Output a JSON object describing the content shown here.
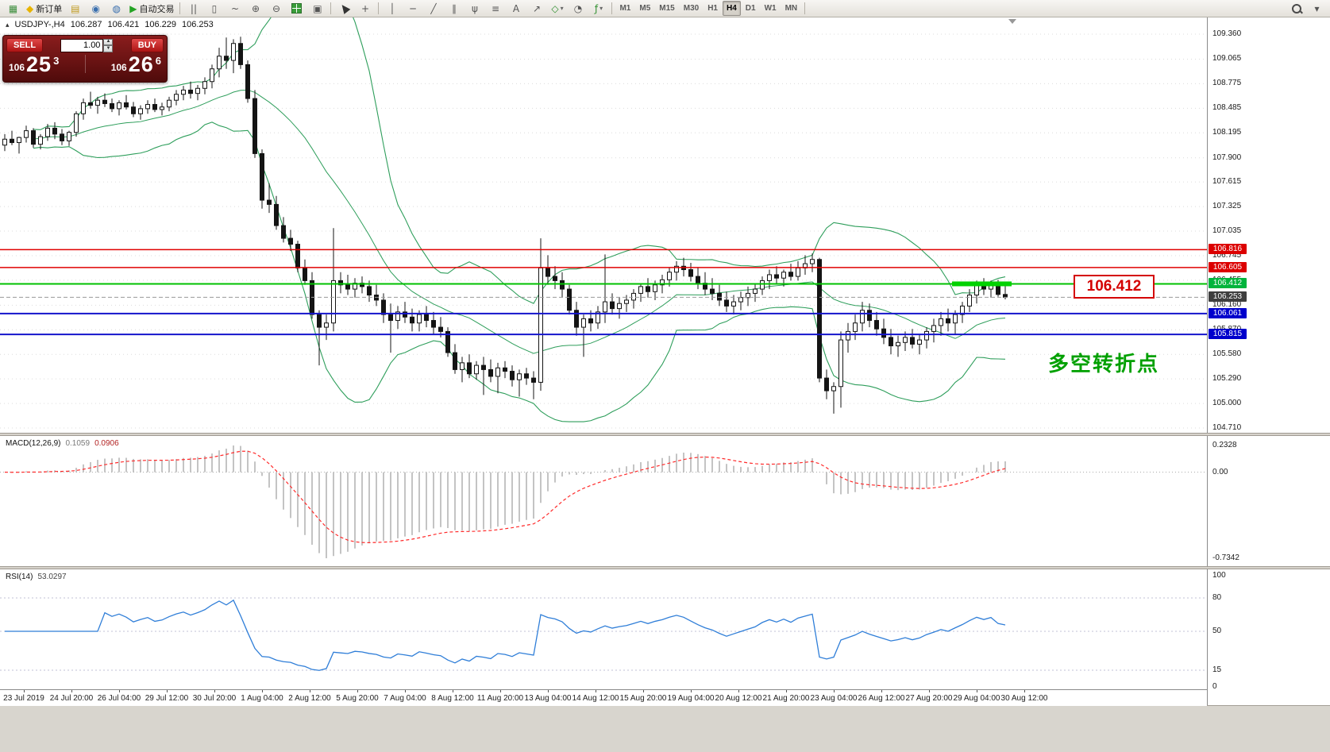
{
  "toolbar": {
    "items": [
      {
        "name": "terminal-chart-icon",
        "glyph": "▦",
        "color": "#3f8f3f"
      },
      {
        "name": "new-order-button",
        "glyph": "◆",
        "color": "#e8b400",
        "label": "新订单"
      },
      {
        "name": "quotes-icon",
        "glyph": "▤",
        "color": "#c09a20"
      },
      {
        "name": "profile-icon",
        "glyph": "◉",
        "color": "#3a6fae"
      },
      {
        "name": "community-icon",
        "glyph": "◍",
        "color": "#3a6fae"
      },
      {
        "name": "autotrading-button",
        "glyph": "▶",
        "color": "#23a323",
        "label": "自动交易"
      },
      {
        "sep": true
      },
      {
        "name": "bars-mode-icon",
        "glyph": "||",
        "color": "#555555"
      },
      {
        "name": "candles-mode-icon",
        "glyph": "▯",
        "color": "#555555"
      },
      {
        "name": "line-mode-icon",
        "glyph": "~",
        "color": "#555555"
      },
      {
        "name": "zoom-in-icon",
        "glyph": "⊕",
        "color": "#555555"
      },
      {
        "name": "zoom-out-icon",
        "glyph": "⊖",
        "color": "#555555"
      },
      {
        "name": "tile-windows-icon",
        "css": "tile"
      },
      {
        "name": "arrange-windows-icon",
        "glyph": "▣",
        "color": "#555555"
      },
      {
        "sep": true
      },
      {
        "name": "cursor-icon",
        "css": "cursor"
      },
      {
        "name": "crosshair-icon",
        "glyph": "+",
        "color": "#555555"
      },
      {
        "sep": true
      },
      {
        "name": "vertical-line-icon",
        "glyph": "│",
        "color": "#555555"
      },
      {
        "name": "horizontal-line-icon",
        "glyph": "─",
        "color": "#555555"
      },
      {
        "name": "trendline-icon",
        "glyph": "╱",
        "color": "#555555"
      },
      {
        "name": "channel-icon",
        "glyph": "∥",
        "color": "#555555"
      },
      {
        "name": "pitchfork-icon",
        "glyph": "ψ",
        "color": "#555555"
      },
      {
        "name": "fibonacci-icon",
        "glyph": "≡",
        "color": "#555555"
      },
      {
        "name": "text-label-icon",
        "glyph": "A",
        "color": "#555555"
      },
      {
        "name": "arrow-objects-icon",
        "glyph": "↗",
        "color": "#555555"
      },
      {
        "name": "shapes-icon",
        "glyph": "◇",
        "color": "#2f8f2f",
        "dropdown": true
      },
      {
        "name": "cycles-icon",
        "glyph": "◔",
        "color": "#555555"
      },
      {
        "name": "indicators-icon",
        "glyph": "ƒ",
        "color": "#2f8f2f",
        "dropdown": true
      },
      {
        "sep": true
      },
      {
        "timeframes": true
      },
      {
        "sep": true
      }
    ],
    "items_right": [
      {
        "name": "search-icon",
        "css": "magnifier"
      },
      {
        "name": "toolbar-options-icon",
        "glyph": "▾",
        "color": "#555555"
      }
    ],
    "timeframes": {
      "options": [
        "M1",
        "M5",
        "M15",
        "M30",
        "H1",
        "H4",
        "D1",
        "W1",
        "MN"
      ],
      "active": "H4"
    }
  },
  "ohlc": {
    "symbol_period": "USDJPY-,H4",
    "open": "106.287",
    "high": "106.421",
    "low": "106.229",
    "close": "106.253"
  },
  "trade_panel": {
    "sell_label": "SELL",
    "buy_label": "BUY",
    "volume": "1.00",
    "sell_small": "106",
    "sell_big": "25",
    "sell_sup": "3",
    "buy_small": "106",
    "buy_big": "26",
    "buy_sup": "6"
  },
  "price_axis": {
    "scale": [
      "109.360",
      "109.065",
      "108.775",
      "108.485",
      "108.195",
      "107.900",
      "107.615",
      "107.325",
      "107.035",
      "106.745",
      "106.455",
      "106.160",
      "105.870",
      "105.580",
      "105.290",
      "105.000",
      "104.710"
    ],
    "tags": [
      {
        "text": "106.816",
        "bg": "#dc0000"
      },
      {
        "text": "106.605",
        "bg": "#dc0000"
      },
      {
        "text": "106.412",
        "bg": "#00b43c"
      },
      {
        "text": "106.253",
        "bg": "#3e3e3e"
      },
      {
        "text": "106.061",
        "bg": "#0000cc"
      },
      {
        "text": "105.815",
        "bg": "#0000cc"
      }
    ]
  },
  "levels": {
    "lines": [
      {
        "name": "resistance-line-1",
        "price": 106.816,
        "color": "#e00000",
        "width": 1.6
      },
      {
        "name": "resistance-line-2",
        "price": 106.605,
        "color": "#e00000",
        "width": 1.6
      },
      {
        "name": "pivot-line",
        "price": 106.412,
        "color": "#00c000",
        "width": 2
      },
      {
        "name": "support-line-1",
        "price": 106.061,
        "color": "#1414cc",
        "width": 2
      },
      {
        "name": "support-line-2",
        "price": 105.815,
        "color": "#1414cc",
        "width": 2
      }
    ],
    "bid": {
      "price": 106.253,
      "color": "#9a9a9a"
    },
    "zone": {
      "price": 106.412,
      "from": 133,
      "to": 140,
      "color": "#00d200"
    }
  },
  "annotations": {
    "price_callout": "106.412",
    "note_text": "多空转折点"
  },
  "macd": {
    "title": "MACD(12,26,9)",
    "value_main": "0.1059",
    "value_signal": "0.0906",
    "axis_max": "0.2328",
    "axis_zero": "0.00",
    "axis_min": "-0.7342"
  },
  "rsi": {
    "title": "RSI(14)",
    "value": "53.0297",
    "axis": [
      "100",
      "80",
      "50",
      "15",
      "0"
    ],
    "levels": [
      80,
      50,
      15
    ]
  },
  "time_axis": {
    "labels": [
      "23 Jul 2019",
      "24 Jul 20:00",
      "26 Jul 04:00",
      "29 Jul 12:00",
      "30 Jul 20:00",
      "1 Aug 04:00",
      "2 Aug 12:00",
      "5 Aug 20:00",
      "7 Aug 04:00",
      "8 Aug 12:00",
      "11 Aug 20:00",
      "13 Aug 04:00",
      "14 Aug 12:00",
      "15 Aug 20:00",
      "19 Aug 04:00",
      "20 Aug 12:00",
      "21 Aug 20:00",
      "23 Aug 04:00",
      "26 Aug 12:00",
      "27 Aug 20:00",
      "29 Aug 04:00",
      "30 Aug 12:00"
    ]
  },
  "colors": {
    "bollinger": "#2e9e5b",
    "candle_up": "#ffffff",
    "candle_down": "#141414",
    "candle_border": "#141414",
    "grid": "#dcdcdc",
    "macd_histogram": "#b0b0b0",
    "macd_signal": "#ff2a2a",
    "rsi_line": "#2f7ed8",
    "note_green": "#00a000"
  },
  "chart_data": {
    "type": "candlestick",
    "symbol": "USDJPY-",
    "period": "H4",
    "ylim": [
      104.65,
      109.56
    ],
    "indicators": [
      {
        "type": "bollinger_bands",
        "period": 20,
        "deviation": 2
      },
      {
        "type": "macd",
        "fast": 12,
        "slow": 26,
        "signal": 9
      },
      {
        "type": "rsi",
        "period": 14
      }
    ],
    "ohlc": [
      [
        108.05,
        108.18,
        107.98,
        108.12
      ],
      [
        108.12,
        108.22,
        108.05,
        108.08
      ],
      [
        108.08,
        108.15,
        107.95,
        108.14
      ],
      [
        108.14,
        108.28,
        108.08,
        108.22
      ],
      [
        108.22,
        108.25,
        108.02,
        108.06
      ],
      [
        108.06,
        108.18,
        108.0,
        108.15
      ],
      [
        108.15,
        108.3,
        108.1,
        108.25
      ],
      [
        108.25,
        108.32,
        108.12,
        108.18
      ],
      [
        108.18,
        108.24,
        108.05,
        108.1
      ],
      [
        108.1,
        108.22,
        108.04,
        108.2
      ],
      [
        108.2,
        108.45,
        108.15,
        108.42
      ],
      [
        108.42,
        108.6,
        108.35,
        108.55
      ],
      [
        108.55,
        108.68,
        108.48,
        108.52
      ],
      [
        108.52,
        108.62,
        108.42,
        108.58
      ],
      [
        108.58,
        108.66,
        108.5,
        108.54
      ],
      [
        108.54,
        108.6,
        108.44,
        108.48
      ],
      [
        108.48,
        108.58,
        108.4,
        108.55
      ],
      [
        108.55,
        108.64,
        108.47,
        108.5
      ],
      [
        108.5,
        108.56,
        108.38,
        108.42
      ],
      [
        108.42,
        108.52,
        108.35,
        108.48
      ],
      [
        108.48,
        108.58,
        108.42,
        108.53
      ],
      [
        108.53,
        108.6,
        108.44,
        108.47
      ],
      [
        108.47,
        108.55,
        108.4,
        108.5
      ],
      [
        108.5,
        108.62,
        108.45,
        108.58
      ],
      [
        108.58,
        108.7,
        108.52,
        108.65
      ],
      [
        108.65,
        108.75,
        108.58,
        108.7
      ],
      [
        108.7,
        108.8,
        108.6,
        108.66
      ],
      [
        108.66,
        108.76,
        108.58,
        108.72
      ],
      [
        108.72,
        108.85,
        108.65,
        108.8
      ],
      [
        108.8,
        109.0,
        108.72,
        108.95
      ],
      [
        108.95,
        109.2,
        108.85,
        109.1
      ],
      [
        109.1,
        109.32,
        108.95,
        109.05
      ],
      [
        109.05,
        109.3,
        108.9,
        109.25
      ],
      [
        109.25,
        109.33,
        108.95,
        109.0
      ],
      [
        109.0,
        109.05,
        108.55,
        108.6
      ],
      [
        108.6,
        108.7,
        107.9,
        107.95
      ],
      [
        107.95,
        108.0,
        107.3,
        107.4
      ],
      [
        107.4,
        107.6,
        107.25,
        107.35
      ],
      [
        107.35,
        107.45,
        107.05,
        107.1
      ],
      [
        107.1,
        107.2,
        106.9,
        106.95
      ],
      [
        106.95,
        107.05,
        106.8,
        106.88
      ],
      [
        106.88,
        106.92,
        106.55,
        106.6
      ],
      [
        106.6,
        106.7,
        106.4,
        106.45
      ],
      [
        106.45,
        106.55,
        106.0,
        106.05
      ],
      [
        106.05,
        106.1,
        105.45,
        105.9
      ],
      [
        105.9,
        106.05,
        105.75,
        105.95
      ],
      [
        105.95,
        107.07,
        105.85,
        106.45
      ],
      [
        106.45,
        106.55,
        106.3,
        106.4
      ],
      [
        106.4,
        106.52,
        106.28,
        106.35
      ],
      [
        106.35,
        106.48,
        106.25,
        106.42
      ],
      [
        106.42,
        106.5,
        106.3,
        106.38
      ],
      [
        106.38,
        106.45,
        106.2,
        106.28
      ],
      [
        106.28,
        106.4,
        106.15,
        106.22
      ],
      [
        106.22,
        106.3,
        105.95,
        106.05
      ],
      [
        106.05,
        106.18,
        105.6,
        105.98
      ],
      [
        105.98,
        106.15,
        105.88,
        106.08
      ],
      [
        106.08,
        106.2,
        105.95,
        106.02
      ],
      [
        106.02,
        106.12,
        105.85,
        105.95
      ],
      [
        105.95,
        106.1,
        105.85,
        106.05
      ],
      [
        106.05,
        106.15,
        105.9,
        105.98
      ],
      [
        105.98,
        106.08,
        105.82,
        105.9
      ],
      [
        105.9,
        106.02,
        105.78,
        105.85
      ],
      [
        105.85,
        105.9,
        105.55,
        105.6
      ],
      [
        105.6,
        105.7,
        105.35,
        105.4
      ],
      [
        105.4,
        105.55,
        105.25,
        105.48
      ],
      [
        105.48,
        105.58,
        105.3,
        105.35
      ],
      [
        105.35,
        105.5,
        105.28,
        105.45
      ],
      [
        105.45,
        105.55,
        105.1,
        105.4
      ],
      [
        105.4,
        105.52,
        105.25,
        105.32
      ],
      [
        105.32,
        105.48,
        105.12,
        105.42
      ],
      [
        105.42,
        105.5,
        105.3,
        105.38
      ],
      [
        105.38,
        105.45,
        105.2,
        105.28
      ],
      [
        105.28,
        105.4,
        105.08,
        105.35
      ],
      [
        105.35,
        105.42,
        105.22,
        105.3
      ],
      [
        105.3,
        105.38,
        105.05,
        105.25
      ],
      [
        105.25,
        106.95,
        105.15,
        106.6
      ],
      [
        106.6,
        106.75,
        106.4,
        106.5
      ],
      [
        106.5,
        106.62,
        106.35,
        106.45
      ],
      [
        106.45,
        106.55,
        106.25,
        106.35
      ],
      [
        106.35,
        106.4,
        106.05,
        106.1
      ],
      [
        106.1,
        106.2,
        105.8,
        105.9
      ],
      [
        105.9,
        106.05,
        105.55,
        106.0
      ],
      [
        106.0,
        106.1,
        105.85,
        105.95
      ],
      [
        105.95,
        106.15,
        105.88,
        106.08
      ],
      [
        106.08,
        106.76,
        105.95,
        106.2
      ],
      [
        106.2,
        106.3,
        106.05,
        106.12
      ],
      [
        106.12,
        106.25,
        106.0,
        106.18
      ],
      [
        106.18,
        106.28,
        106.08,
        106.22
      ],
      [
        106.22,
        106.35,
        106.12,
        106.3
      ],
      [
        106.3,
        106.42,
        106.2,
        106.38
      ],
      [
        106.38,
        106.48,
        106.25,
        106.32
      ],
      [
        106.32,
        106.45,
        106.22,
        106.4
      ],
      [
        106.4,
        106.52,
        106.3,
        106.46
      ],
      [
        106.46,
        106.6,
        106.38,
        106.55
      ],
      [
        106.55,
        106.68,
        106.45,
        106.62
      ],
      [
        106.62,
        106.72,
        106.5,
        106.58
      ],
      [
        106.58,
        106.66,
        106.44,
        106.5
      ],
      [
        106.5,
        106.6,
        106.35,
        106.42
      ],
      [
        106.42,
        106.55,
        106.28,
        106.35
      ],
      [
        106.35,
        106.48,
        106.22,
        106.3
      ],
      [
        106.3,
        106.4,
        106.15,
        106.22
      ],
      [
        106.22,
        106.32,
        106.08,
        106.15
      ],
      [
        106.15,
        106.28,
        106.05,
        106.2
      ],
      [
        106.2,
        106.32,
        106.1,
        106.25
      ],
      [
        106.25,
        106.38,
        106.15,
        106.3
      ],
      [
        106.3,
        106.42,
        106.2,
        106.35
      ],
      [
        106.35,
        106.5,
        106.28,
        106.45
      ],
      [
        106.45,
        106.58,
        106.35,
        106.52
      ],
      [
        106.52,
        106.62,
        106.42,
        106.48
      ],
      [
        106.48,
        106.58,
        106.38,
        106.55
      ],
      [
        106.55,
        106.65,
        106.45,
        106.5
      ],
      [
        106.5,
        106.68,
        106.45,
        106.6
      ],
      [
        106.6,
        106.75,
        106.52,
        106.65
      ],
      [
        106.65,
        106.77,
        106.55,
        106.7
      ],
      [
        106.7,
        106.72,
        105.25,
        105.3
      ],
      [
        105.3,
        105.4,
        105.05,
        105.15
      ],
      [
        105.15,
        105.25,
        104.88,
        105.2
      ],
      [
        105.2,
        105.85,
        104.95,
        105.75
      ],
      [
        105.75,
        105.95,
        105.6,
        105.85
      ],
      [
        105.85,
        106.05,
        105.75,
        105.95
      ],
      [
        105.95,
        106.2,
        105.85,
        106.1
      ],
      [
        106.1,
        106.18,
        105.9,
        105.98
      ],
      [
        105.98,
        106.08,
        105.8,
        105.88
      ],
      [
        105.88,
        106.0,
        105.7,
        105.78
      ],
      [
        105.78,
        105.88,
        105.58,
        105.68
      ],
      [
        105.68,
        105.8,
        105.55,
        105.72
      ],
      [
        105.72,
        105.85,
        105.62,
        105.78
      ],
      [
        105.78,
        105.88,
        105.65,
        105.7
      ],
      [
        105.7,
        105.82,
        105.58,
        105.75
      ],
      [
        105.75,
        105.9,
        105.65,
        105.85
      ],
      [
        105.85,
        106.0,
        105.72,
        105.92
      ],
      [
        105.92,
        106.08,
        105.8,
        106.0
      ],
      [
        106.0,
        106.12,
        105.85,
        105.95
      ],
      [
        105.95,
        106.1,
        105.82,
        106.05
      ],
      [
        106.05,
        106.2,
        105.95,
        106.15
      ],
      [
        106.15,
        106.35,
        106.08,
        106.28
      ],
      [
        106.28,
        106.45,
        106.18,
        106.4
      ],
      [
        106.4,
        106.48,
        106.28,
        106.35
      ],
      [
        106.35,
        106.45,
        106.25,
        106.42
      ],
      [
        106.42,
        106.46,
        106.26,
        106.287
      ],
      [
        106.287,
        106.421,
        106.229,
        106.253
      ]
    ]
  }
}
